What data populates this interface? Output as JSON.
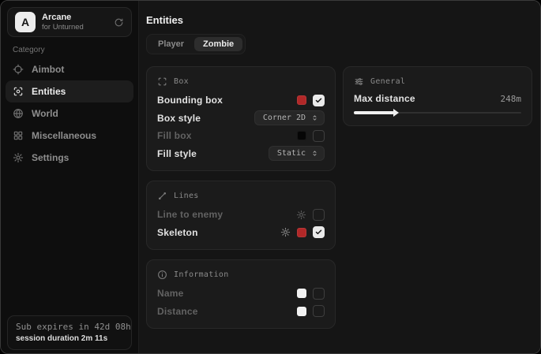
{
  "colors": {
    "accent_red": "#b12828",
    "swatch_black": "#060606",
    "swatch_white": "#f2f2f2"
  },
  "sidebar": {
    "brand": {
      "initial": "A",
      "title": "Arcane",
      "subtitle": "for Unturned",
      "refresh_icon": "refresh-icon"
    },
    "category_label": "Category",
    "items": [
      {
        "label": "Aimbot",
        "icon": "crosshair-icon",
        "active": false
      },
      {
        "label": "Entities",
        "icon": "scan-icon",
        "active": true
      },
      {
        "label": "World",
        "icon": "globe-icon",
        "active": false
      },
      {
        "label": "Miscellaneous",
        "icon": "grid-icon",
        "active": false
      },
      {
        "label": "Settings",
        "icon": "gear-icon",
        "active": false
      }
    ],
    "subscription": {
      "expires": "Sub expires in 42d 08h",
      "session": "session duration 2m 11s"
    }
  },
  "main": {
    "title": "Entities",
    "tabs": [
      {
        "label": "Player",
        "active": false
      },
      {
        "label": "Zombie",
        "active": true
      }
    ],
    "cards": {
      "box": {
        "title": "Box",
        "icon": "box-corners-icon",
        "rows": [
          {
            "label": "Bounding box",
            "color": "#b12828",
            "checked": true
          },
          {
            "label": "Box style",
            "control": "dropdown",
            "value": "Corner 2D"
          },
          {
            "label": "Fill box",
            "color": "#060606",
            "checked": false
          },
          {
            "label": "Fill style",
            "control": "dropdown",
            "value": "Static"
          }
        ]
      },
      "lines": {
        "title": "Lines",
        "icon": "line-icon",
        "rows": [
          {
            "label": "Line to enemy",
            "has_settings": true,
            "checked": false
          },
          {
            "label": "Skeleton",
            "has_settings": true,
            "color": "#b12828",
            "checked": true
          }
        ]
      },
      "information": {
        "title": "Information",
        "icon": "info-icon",
        "rows": [
          {
            "label": "Name",
            "color": "#f2f2f2",
            "checked": false
          },
          {
            "label": "Distance",
            "color": "#f2f2f2",
            "checked": false
          }
        ]
      },
      "general": {
        "title": "General",
        "icon": "sliders-icon",
        "max_distance": {
          "label": "Max distance",
          "value": "248m",
          "fill": "24%"
        }
      }
    }
  }
}
